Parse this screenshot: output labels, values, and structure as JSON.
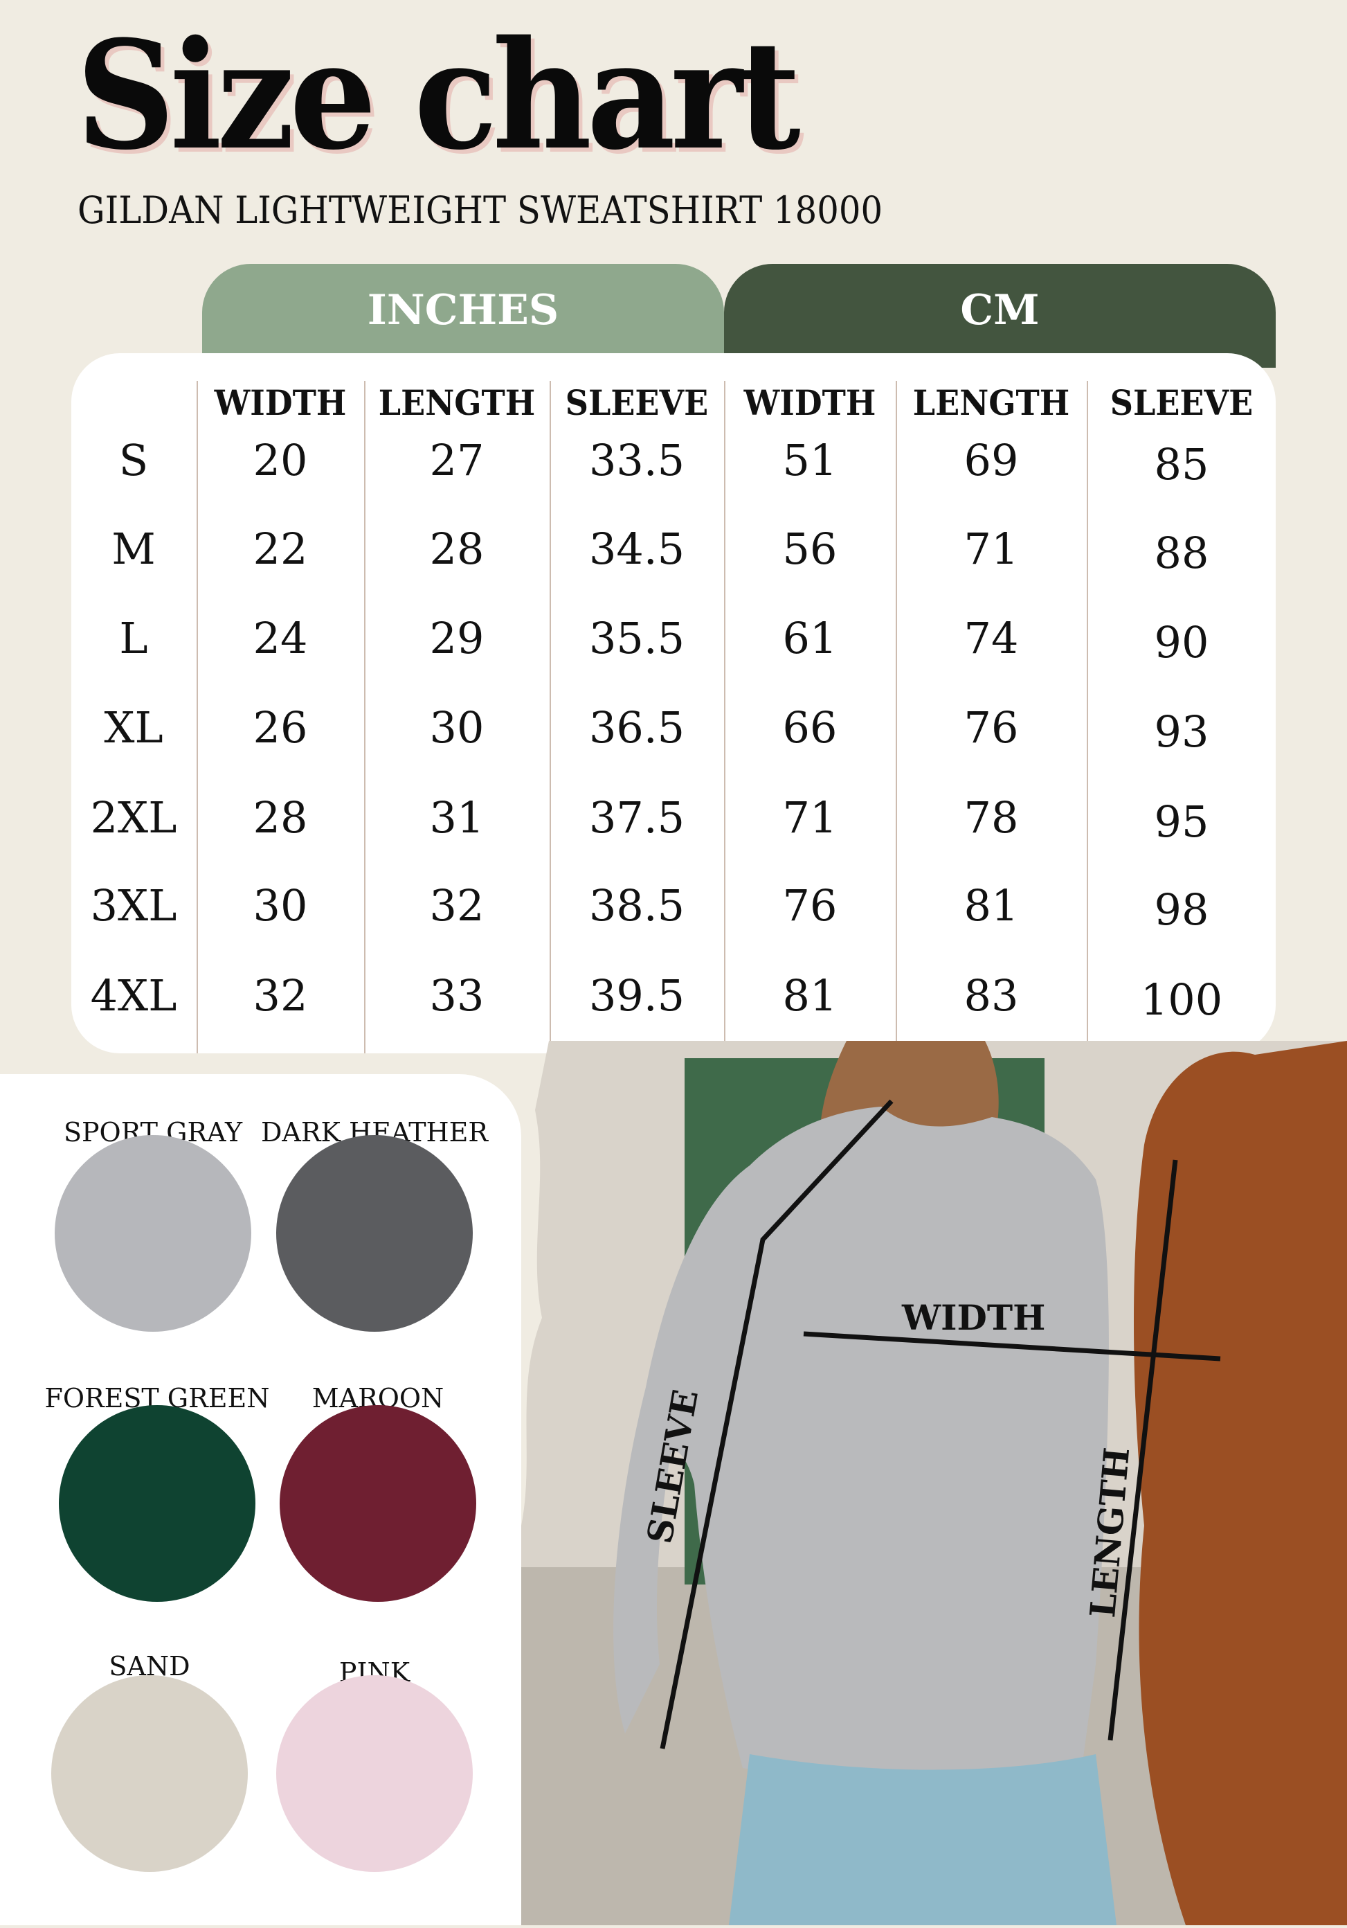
{
  "title": "Size chart",
  "subtitle": "GILDAN LIGHTWEIGHT SWEATSHIRT 18000",
  "tabs": {
    "inches": "INCHES",
    "cm": "CM"
  },
  "colors": {
    "inches_tab": "#8fa88d",
    "cm_tab": "#43553f",
    "background": "#f0ece2"
  },
  "columns": [
    "WIDTH",
    "LENGTH",
    "SLEEVE",
    "WIDTH",
    "LENGTH",
    "SLEEVE"
  ],
  "rows": [
    {
      "size": "S",
      "values": [
        "20",
        "27",
        "33.5",
        "51",
        "69",
        "85"
      ]
    },
    {
      "size": "M",
      "values": [
        "22",
        "28",
        "34.5",
        "56",
        "71",
        "88"
      ]
    },
    {
      "size": "L",
      "values": [
        "24",
        "29",
        "35.5",
        "61",
        "74",
        "90"
      ]
    },
    {
      "size": "XL",
      "values": [
        "26",
        "30",
        "36.5",
        "66",
        "76",
        "93"
      ]
    },
    {
      "size": "2XL",
      "values": [
        "28",
        "31",
        "37.5",
        "71",
        "78",
        "95"
      ]
    },
    {
      "size": "3XL",
      "values": [
        "30",
        "32",
        "38.5",
        "76",
        "81",
        "98"
      ]
    },
    {
      "size": "4XL",
      "values": [
        "32",
        "33",
        "39.5",
        "81",
        "83",
        "100"
      ]
    }
  ],
  "swatches": [
    {
      "label": "SPORT GRAY",
      "color": "#b6b7bb"
    },
    {
      "label": "DARK HEATHER",
      "color": "#5b5c5f"
    },
    {
      "label": "FOREST GREEN",
      "color": "#0f4331"
    },
    {
      "label": "MAROON",
      "color": "#6f1f31"
    },
    {
      "label": "SAND",
      "color": "#d9d3c8"
    },
    {
      "label": "PINK",
      "color": "#edd4dd"
    }
  ],
  "photo_labels": {
    "width": "WIDTH",
    "sleeve": "SLEEVE",
    "length": "LENGTH"
  }
}
